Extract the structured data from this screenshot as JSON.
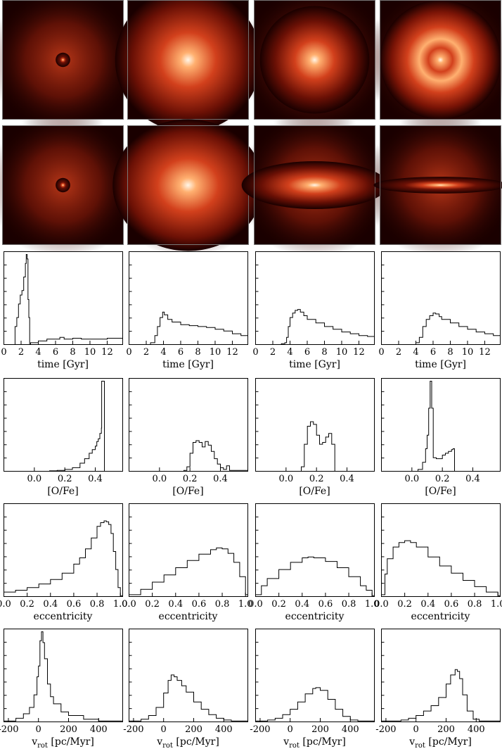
{
  "colors": {
    "background": "#ffffff",
    "axis": "#000000",
    "histogram_line": "#000000",
    "map_dark": "#1a0000",
    "map_mid": "#d2401c",
    "map_bright": "#ffb070",
    "map_core": "#fff6e8"
  },
  "images": {
    "face_on": [
      {
        "name": "panel-1-face-on",
        "extent_x": 0.06,
        "extent_y": 0.06,
        "spread": 0.45,
        "peak": 0.95,
        "ring": 0
      },
      {
        "name": "panel-2-face-on",
        "extent_x": 0.6,
        "extent_y": 0.6,
        "spread": 0.85,
        "peak": 1.0,
        "ring": 0
      },
      {
        "name": "panel-3-face-on",
        "extent_x": 0.45,
        "extent_y": 0.45,
        "spread": 0.8,
        "peak": 1.0,
        "ring": 0
      },
      {
        "name": "panel-4-face-on",
        "extent_x": 0.5,
        "extent_y": 0.5,
        "spread": 0.9,
        "peak": 1.0,
        "ring": 0.35
      }
    ],
    "edge_on": [
      {
        "name": "panel-1-edge-on",
        "extent_x": 0.06,
        "extent_y": 0.06,
        "spread": 0.45,
        "peak": 0.95
      },
      {
        "name": "panel-2-edge-on",
        "extent_x": 0.62,
        "extent_y": 0.55,
        "spread": 0.9,
        "peak": 1.0
      },
      {
        "name": "panel-3-edge-on",
        "extent_x": 0.6,
        "extent_y": 0.2,
        "spread": 0.8,
        "peak": 1.0
      },
      {
        "name": "panel-4-edge-on",
        "extent_x": 0.55,
        "extent_y": 0.07,
        "spread": 0.6,
        "peak": 1.0
      }
    ]
  },
  "chart_data": [
    {
      "type": "line",
      "xlabel": "time [Gyr]",
      "xlim": [
        0,
        13.8
      ],
      "xticks": [
        "0",
        "2",
        "4",
        "6",
        "8",
        "10",
        "12"
      ],
      "panels": [
        {
          "x": [
            0,
            1.2,
            1.3,
            1.5,
            1.7,
            1.9,
            2.1,
            2.3,
            2.5,
            2.6,
            2.7,
            2.8,
            2.9,
            3.0,
            3.1,
            4,
            5,
            6,
            6.5,
            7,
            8,
            9,
            10,
            11,
            12,
            13,
            13.8
          ],
          "y": [
            0,
            0,
            0.2,
            0.3,
            0.45,
            0.55,
            0.6,
            0.75,
            0.9,
            1.0,
            0.95,
            0.5,
            0.3,
            0,
            0.02,
            0.04,
            0.06,
            0.06,
            0.08,
            0.06,
            0.07,
            0.06,
            0.06,
            0.06,
            0.07,
            0.07,
            0.08
          ]
        },
        {
          "x": [
            0,
            1,
            2,
            2.5,
            3,
            3.3,
            3.6,
            3.9,
            4.1,
            4.5,
            5,
            6,
            7,
            8,
            9,
            10,
            11,
            12,
            13,
            13.8
          ],
          "y": [
            0,
            0,
            0,
            0.02,
            0.1,
            0.2,
            0.3,
            0.36,
            0.33,
            0.28,
            0.25,
            0.22,
            0.21,
            0.2,
            0.19,
            0.17,
            0.15,
            0.12,
            0.1,
            0.08
          ]
        },
        {
          "x": [
            0,
            3,
            3.4,
            3.6,
            3.8,
            4.0,
            4.3,
            4.6,
            4.9,
            5.2,
            5.6,
            6,
            7,
            8,
            9,
            10,
            11,
            12,
            13,
            13.8
          ],
          "y": [
            0,
            0.01,
            0.02,
            0.08,
            0.2,
            0.3,
            0.35,
            0.38,
            0.39,
            0.36,
            0.32,
            0.28,
            0.24,
            0.2,
            0.17,
            0.14,
            0.12,
            0.1,
            0.09,
            0.08
          ]
        },
        {
          "x": [
            0,
            3.5,
            4,
            4.4,
            4.8,
            5.2,
            5.6,
            6.0,
            6.3,
            6.7,
            7,
            8,
            9,
            10,
            11,
            12,
            13,
            13.8
          ],
          "y": [
            0,
            0,
            0.02,
            0.08,
            0.2,
            0.28,
            0.32,
            0.35,
            0.34,
            0.31,
            0.28,
            0.24,
            0.2,
            0.17,
            0.14,
            0.12,
            0.1,
            0.09
          ]
        }
      ]
    },
    {
      "type": "line",
      "xlabel": "[O/Fe]",
      "xlim": [
        -0.2,
        0.58
      ],
      "xticks": [
        "0.0",
        "0.2",
        "0.4"
      ],
      "panels": [
        {
          "x": [
            -0.2,
            0.05,
            0.1,
            0.15,
            0.2,
            0.25,
            0.3,
            0.33,
            0.36,
            0.38,
            0.4,
            0.41,
            0.42,
            0.43,
            0.44,
            0.442,
            0.45,
            0.46,
            0.58
          ],
          "y": [
            0,
            0,
            0.005,
            0.01,
            0.02,
            0.04,
            0.09,
            0.14,
            0.2,
            0.24,
            0.28,
            0.33,
            0.36,
            0.42,
            0.48,
            1.0,
            1.0,
            0,
            0
          ]
        },
        {
          "x": [
            -0.2,
            0.12,
            0.16,
            0.18,
            0.2,
            0.22,
            0.24,
            0.26,
            0.28,
            0.3,
            0.32,
            0.34,
            0.36,
            0.38,
            0.4,
            0.42,
            0.44,
            0.46,
            0.58
          ],
          "y": [
            0,
            0,
            0.01,
            0.05,
            0.2,
            0.32,
            0.34,
            0.32,
            0.27,
            0.33,
            0.29,
            0.22,
            0.14,
            0.08,
            0.04,
            0.02,
            0.06,
            0.01,
            0
          ]
        },
        {
          "x": [
            -0.2,
            0.08,
            0.1,
            0.12,
            0.14,
            0.16,
            0.18,
            0.2,
            0.22,
            0.24,
            0.26,
            0.28,
            0.3,
            0.32,
            0.58
          ],
          "y": [
            0,
            0,
            0.05,
            0.3,
            0.5,
            0.55,
            0.52,
            0.4,
            0.3,
            0.32,
            0.38,
            0.42,
            0.3,
            0,
            0
          ]
        },
        {
          "x": [
            -0.2,
            0.0,
            0.04,
            0.07,
            0.09,
            0.1,
            0.11,
            0.12,
            0.13,
            0.14,
            0.16,
            0.2,
            0.22,
            0.24,
            0.26,
            0.27,
            0.28,
            0.58
          ],
          "y": [
            0,
            0,
            0.02,
            0.1,
            0.25,
            0.4,
            0.7,
            1.0,
            0.7,
            0.15,
            0.14,
            0.18,
            0.2,
            0.22,
            0.24,
            0.25,
            0,
            0
          ]
        }
      ]
    },
    {
      "type": "line",
      "xlabel": "eccentricity",
      "xlim": [
        0,
        1.02
      ],
      "xticks": [
        "0.0",
        "0.2",
        "0.4",
        "0.6",
        "0.8",
        "1.0"
      ],
      "panels": [
        {
          "x": [
            0,
            0.1,
            0.2,
            0.3,
            0.4,
            0.5,
            0.6,
            0.65,
            0.7,
            0.75,
            0.8,
            0.83,
            0.86,
            0.88,
            0.9,
            0.92,
            0.94,
            0.96,
            0.98,
            1.0,
            1.02
          ],
          "y": [
            0.05,
            0.07,
            0.1,
            0.14,
            0.19,
            0.26,
            0.36,
            0.43,
            0.53,
            0.65,
            0.78,
            0.82,
            0.84,
            0.83,
            0.8,
            0.7,
            0.5,
            0.3,
            0.1,
            0.01,
            0
          ]
        },
        {
          "x": [
            0,
            0.1,
            0.2,
            0.3,
            0.4,
            0.5,
            0.6,
            0.7,
            0.75,
            0.8,
            0.85,
            0.9,
            0.95,
            1.0,
            1.02
          ],
          "y": [
            0.02,
            0.08,
            0.16,
            0.24,
            0.32,
            0.4,
            0.47,
            0.52,
            0.54,
            0.53,
            0.48,
            0.38,
            0.22,
            0.02,
            0
          ]
        },
        {
          "x": [
            0,
            0.05,
            0.1,
            0.2,
            0.3,
            0.4,
            0.45,
            0.5,
            0.6,
            0.7,
            0.8,
            0.9,
            0.95,
            1.0,
            1.02
          ],
          "y": [
            0.02,
            0.12,
            0.2,
            0.3,
            0.38,
            0.43,
            0.44,
            0.43,
            0.39,
            0.32,
            0.22,
            0.12,
            0.07,
            0.01,
            0
          ]
        },
        {
          "x": [
            0,
            0.03,
            0.05,
            0.1,
            0.15,
            0.2,
            0.25,
            0.3,
            0.4,
            0.5,
            0.6,
            0.7,
            0.8,
            0.9,
            1.0,
            1.02
          ],
          "y": [
            0.02,
            0.25,
            0.42,
            0.55,
            0.6,
            0.62,
            0.6,
            0.55,
            0.44,
            0.34,
            0.26,
            0.18,
            0.11,
            0.05,
            0.01,
            0
          ]
        }
      ]
    },
    {
      "type": "line",
      "xlabel": "v_rot [pc/Myr]",
      "xlim": [
        -230,
        560
      ],
      "xticks": [
        "-200",
        "0",
        "200",
        "400"
      ],
      "panels": [
        {
          "x": [
            -230,
            -150,
            -100,
            -60,
            -30,
            -10,
            0,
            10,
            20,
            30,
            40,
            60,
            80,
            100,
            150,
            200,
            300,
            400,
            560
          ],
          "y": [
            0.01,
            0.04,
            0.09,
            0.16,
            0.3,
            0.5,
            0.62,
            0.9,
            1.0,
            0.88,
            0.7,
            0.42,
            0.28,
            0.2,
            0.11,
            0.07,
            0.03,
            0.01,
            0
          ]
        },
        {
          "x": [
            -230,
            -150,
            -100,
            -50,
            0,
            30,
            50,
            70,
            90,
            120,
            150,
            200,
            250,
            300,
            350,
            400,
            450,
            560
          ],
          "y": [
            0.01,
            0.03,
            0.07,
            0.16,
            0.32,
            0.46,
            0.52,
            0.5,
            0.46,
            0.4,
            0.33,
            0.22,
            0.14,
            0.08,
            0.04,
            0.02,
            0.01,
            0
          ]
        },
        {
          "x": [
            -230,
            -150,
            -100,
            -50,
            0,
            50,
            100,
            150,
            170,
            200,
            250,
            300,
            350,
            400,
            450,
            560
          ],
          "y": [
            0.01,
            0.02,
            0.04,
            0.08,
            0.14,
            0.22,
            0.31,
            0.37,
            0.38,
            0.35,
            0.25,
            0.14,
            0.06,
            0.02,
            0.01,
            0
          ]
        },
        {
          "x": [
            -230,
            -150,
            -100,
            -50,
            0,
            50,
            100,
            150,
            200,
            230,
            260,
            275,
            290,
            310,
            340,
            380,
            420,
            560
          ],
          "y": [
            0.01,
            0.01,
            0.02,
            0.04,
            0.07,
            0.12,
            0.18,
            0.27,
            0.42,
            0.52,
            0.58,
            0.56,
            0.48,
            0.3,
            0.12,
            0.03,
            0.01,
            0
          ]
        }
      ]
    }
  ]
}
